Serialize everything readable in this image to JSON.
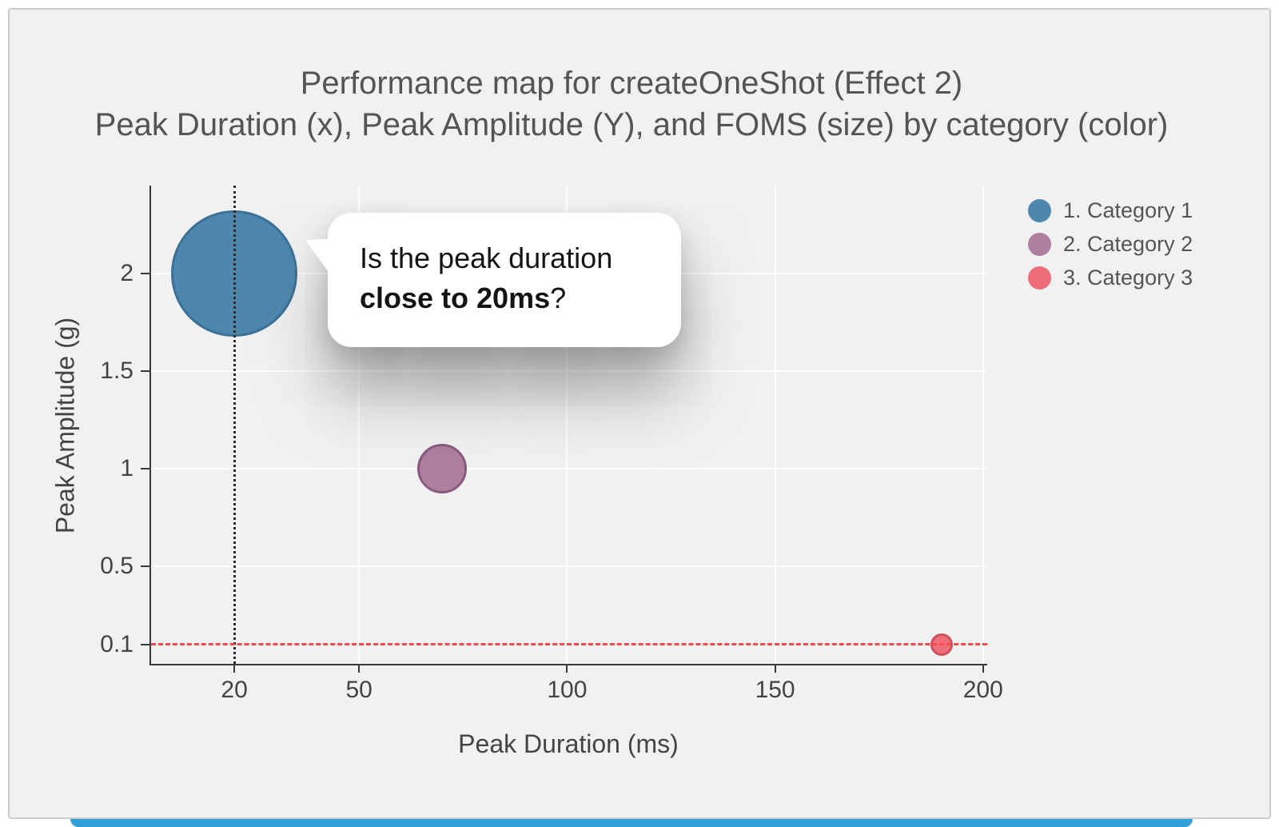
{
  "page": {
    "accent_bar_color": "#2f9fda"
  },
  "chart_data": {
    "type": "scatter",
    "title": "Performance map for createOneShot (Effect 2)",
    "subtitle": "Peak Duration (x), Peak Amplitude (Y), and FOMS (size) by category (color)",
    "xlabel": "Peak Duration (ms)",
    "ylabel": "Peak Amplitude (g)",
    "xlim": [
      0,
      201
    ],
    "ylim": [
      0,
      2.45
    ],
    "x_ticks": [
      20,
      50,
      100,
      150,
      200
    ],
    "y_ticks": [
      0.1,
      0.5,
      1,
      1.5,
      2
    ],
    "grid": true,
    "legend_position": "top-right",
    "series": [
      {
        "name": "1. Category 1",
        "color": "#4d87ae",
        "stroke": "#3c7097",
        "points": [
          {
            "x": 20,
            "y": 2,
            "radius_px": 79
          }
        ]
      },
      {
        "name": "2. Category 2",
        "color": "#b07e9e",
        "stroke": "#8a5a7e",
        "points": [
          {
            "x": 70,
            "y": 1,
            "radius_px": 31
          }
        ]
      },
      {
        "name": "3. Category 3",
        "color": "#ef6e79",
        "stroke": "#d14f5c",
        "points": [
          {
            "x": 190,
            "y": 0.1,
            "radius_px": 14
          }
        ]
      }
    ],
    "reference_lines": [
      {
        "orientation": "vertical",
        "value": 20,
        "style": "dotted",
        "color": "#2b2b2b"
      },
      {
        "orientation": "horizontal",
        "value": 0.1,
        "style": "dashed",
        "color": "#f4494f"
      }
    ]
  },
  "callout": {
    "line1": "Is the peak duration",
    "bold": "close to 20ms",
    "suffix": "?"
  }
}
